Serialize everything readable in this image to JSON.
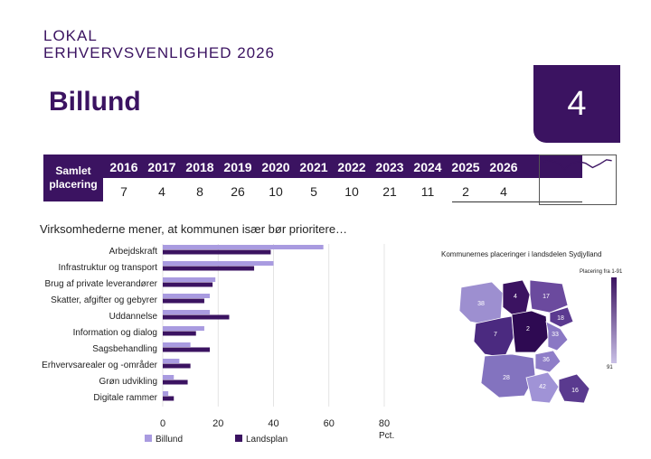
{
  "header": {
    "line1": "LOKAL",
    "line2": "ERHVERVSVENLIGHED 2026"
  },
  "municipality": "Billund",
  "rank": "4",
  "ranking": {
    "label_line1": "Samlet",
    "label_line2": "placering",
    "years": [
      "2016",
      "2017",
      "2018",
      "2019",
      "2020",
      "2021",
      "2022",
      "2023",
      "2024",
      "2025",
      "2026"
    ],
    "values": [
      "7",
      "4",
      "8",
      "26",
      "10",
      "5",
      "10",
      "21",
      "11",
      "2",
      "4"
    ]
  },
  "subtitle": "Virksomhederne mener, at kommunen især bør prioritere…",
  "colors": {
    "dark": "#3b1361",
    "light": "#a99be0"
  },
  "chart_data": {
    "type": "bar",
    "orientation": "horizontal",
    "categories": [
      "Arbejdskraft",
      "Infrastruktur og transport",
      "Brug af private leverandører",
      "Skatter, afgifter og gebyrer",
      "Uddannelse",
      "Information og dialog",
      "Sagsbehandling",
      "Erhvervsarealer og -områder",
      "Grøn udvikling",
      "Digitale rammer"
    ],
    "series": [
      {
        "name": "Billund",
        "color": "#a99be0",
        "values": [
          58,
          40,
          19,
          17,
          17,
          15,
          10,
          6,
          4,
          2
        ]
      },
      {
        "name": "Landsplan",
        "color": "#3b1361",
        "values": [
          39,
          33,
          18,
          15,
          24,
          12,
          17,
          10,
          9,
          4
        ]
      }
    ],
    "xticks": [
      "0",
      "20",
      "40",
      "60",
      "80"
    ],
    "xunit": "Pct.",
    "xlim": [
      0,
      80
    ]
  },
  "map": {
    "title": "Kommunernes placeringer i landsdelen Sydjylland",
    "legend_label": "Placering fra 1-91",
    "legend_min": "91",
    "labels": [
      "38",
      "4",
      "17",
      "18",
      "7",
      "2",
      "33",
      "36",
      "28",
      "42",
      "16"
    ]
  }
}
